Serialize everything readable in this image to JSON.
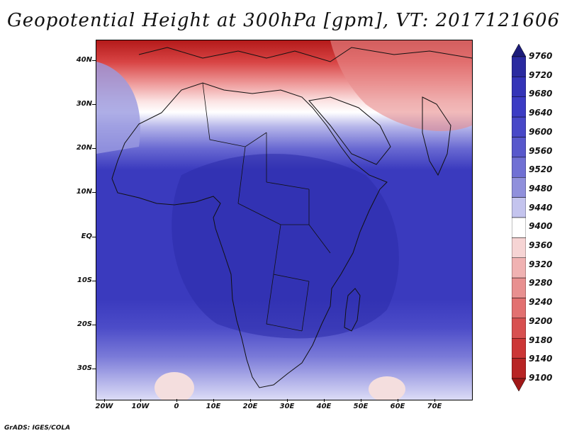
{
  "title": "Geopotential Height at 300hPa [gpm], VT: 2017121606",
  "footer": "GrADS: IGES/COLA",
  "map": {
    "region": "Africa and surrounding oceans",
    "lat_labels": [
      "40N",
      "30N",
      "20N",
      "10N",
      "EQ",
      "10S",
      "20S",
      "30S"
    ],
    "lon_labels": [
      "20W",
      "10W",
      "0",
      "10E",
      "20E",
      "30E",
      "40E",
      "50E",
      "60E",
      "70E"
    ]
  },
  "colorbar": {
    "units": "gpm",
    "levels": [
      "9760",
      "9720",
      "9680",
      "9640",
      "9600",
      "9560",
      "9520",
      "9480",
      "9440",
      "9400",
      "9360",
      "9320",
      "9280",
      "9240",
      "9200",
      "9180",
      "9140",
      "9100"
    ],
    "colors": [
      "#1c1c7a",
      "#2a2aa0",
      "#3434b8",
      "#3c3cc4",
      "#4848c8",
      "#5858cc",
      "#7070d4",
      "#9090dc",
      "#c4c4ee",
      "#ffffff",
      "#f6d4d4",
      "#f0b2b2",
      "#e89090",
      "#e27070",
      "#d85050",
      "#cc3636",
      "#b82424",
      "#a01818"
    ]
  }
}
